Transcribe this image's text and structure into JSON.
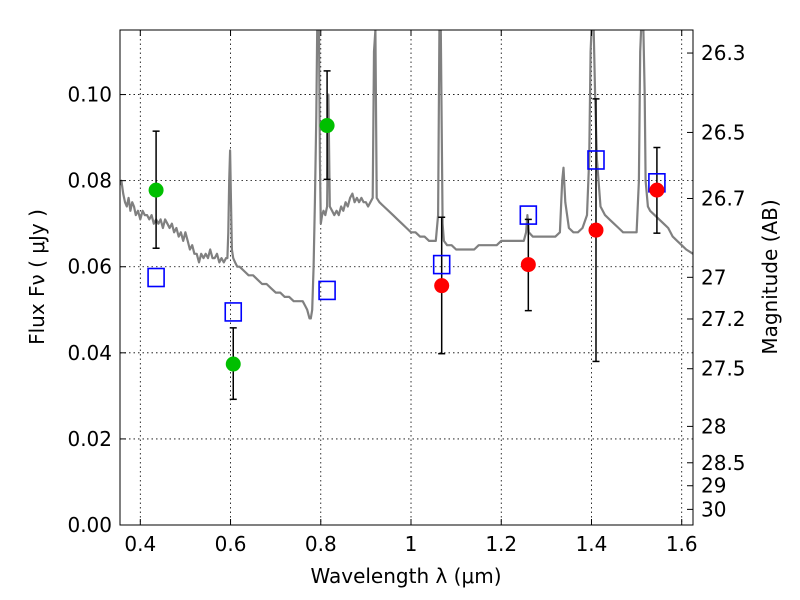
{
  "chart_data": {
    "type": "scatter",
    "xlabel": "Wavelength  λ (μm)",
    "ylabel": "Flux  Fν  ( μJy )",
    "ylabel_right": "Magnitude (AB)",
    "xlim": [
      0.355,
      1.625
    ],
    "ylim": [
      0.0,
      0.115
    ],
    "grid": true,
    "x_ticks": [
      {
        "value": 0.4,
        "label": "0.4"
      },
      {
        "value": 0.6,
        "label": "0.6"
      },
      {
        "value": 0.8,
        "label": "0.8"
      },
      {
        "value": 1.0,
        "label": "1"
      },
      {
        "value": 1.2,
        "label": "1.2"
      },
      {
        "value": 1.4,
        "label": "1.4"
      },
      {
        "value": 1.6,
        "label": "1.6"
      }
    ],
    "y_ticks": [
      {
        "value": 0.0,
        "label": "0.00"
      },
      {
        "value": 0.02,
        "label": "0.02"
      },
      {
        "value": 0.04,
        "label": "0.04"
      },
      {
        "value": 0.06,
        "label": "0.06"
      },
      {
        "value": 0.08,
        "label": "0.08"
      },
      {
        "value": 0.1,
        "label": "0.10"
      }
    ],
    "magnitude_ticks": [
      {
        "value": 26.3,
        "label": "26.3"
      },
      {
        "value": 26.5,
        "label": "26.5"
      },
      {
        "value": 26.7,
        "label": "26.7"
      },
      {
        "value": 27.0,
        "label": "27"
      },
      {
        "value": 27.2,
        "label": "27.2"
      },
      {
        "value": 27.5,
        "label": "27.5"
      },
      {
        "value": 28.0,
        "label": "28"
      },
      {
        "value": 28.5,
        "label": "28.5"
      },
      {
        "value": 29.0,
        "label": "29"
      },
      {
        "value": 30.0,
        "label": "30"
      }
    ],
    "series": [
      {
        "kind": "template_spectrum",
        "color": "#808080",
        "points": [
          [
            0.355,
            0.079
          ],
          [
            0.358,
            0.08
          ],
          [
            0.362,
            0.077
          ],
          [
            0.366,
            0.075
          ],
          [
            0.37,
            0.074
          ],
          [
            0.374,
            0.076
          ],
          [
            0.378,
            0.073
          ],
          [
            0.382,
            0.075
          ],
          [
            0.386,
            0.074
          ],
          [
            0.39,
            0.072
          ],
          [
            0.395,
            0.073
          ],
          [
            0.4,
            0.071
          ],
          [
            0.405,
            0.073
          ],
          [
            0.41,
            0.072
          ],
          [
            0.415,
            0.072
          ],
          [
            0.42,
            0.071
          ],
          [
            0.425,
            0.072
          ],
          [
            0.43,
            0.07
          ],
          [
            0.435,
            0.071
          ],
          [
            0.44,
            0.07
          ],
          [
            0.445,
            0.071
          ],
          [
            0.45,
            0.069
          ],
          [
            0.455,
            0.071
          ],
          [
            0.46,
            0.07
          ],
          [
            0.465,
            0.069
          ],
          [
            0.47,
            0.07
          ],
          [
            0.475,
            0.068
          ],
          [
            0.48,
            0.069
          ],
          [
            0.485,
            0.067
          ],
          [
            0.49,
            0.068
          ],
          [
            0.495,
            0.066
          ],
          [
            0.5,
            0.068
          ],
          [
            0.505,
            0.066
          ],
          [
            0.51,
            0.064
          ],
          [
            0.515,
            0.065
          ],
          [
            0.52,
            0.063
          ],
          [
            0.525,
            0.063
          ],
          [
            0.53,
            0.061
          ],
          [
            0.535,
            0.063
          ],
          [
            0.54,
            0.062
          ],
          [
            0.545,
            0.063
          ],
          [
            0.55,
            0.062
          ],
          [
            0.555,
            0.064
          ],
          [
            0.56,
            0.062
          ],
          [
            0.565,
            0.062
          ],
          [
            0.57,
            0.063
          ],
          [
            0.575,
            0.061
          ],
          [
            0.58,
            0.062
          ],
          [
            0.585,
            0.061
          ],
          [
            0.59,
            0.062
          ],
          [
            0.593,
            0.062
          ],
          [
            0.595,
            0.068
          ],
          [
            0.597,
            0.08
          ],
          [
            0.599,
            0.087
          ],
          [
            0.601,
            0.075
          ],
          [
            0.603,
            0.064
          ],
          [
            0.606,
            0.062
          ],
          [
            0.61,
            0.061
          ],
          [
            0.615,
            0.06
          ],
          [
            0.62,
            0.06
          ],
          [
            0.63,
            0.059
          ],
          [
            0.64,
            0.058
          ],
          [
            0.65,
            0.058
          ],
          [
            0.66,
            0.057
          ],
          [
            0.67,
            0.056
          ],
          [
            0.68,
            0.056
          ],
          [
            0.69,
            0.055
          ],
          [
            0.7,
            0.054
          ],
          [
            0.71,
            0.054
          ],
          [
            0.72,
            0.053
          ],
          [
            0.73,
            0.053
          ],
          [
            0.74,
            0.052
          ],
          [
            0.75,
            0.052
          ],
          [
            0.76,
            0.052
          ],
          [
            0.765,
            0.051
          ],
          [
            0.77,
            0.05
          ],
          [
            0.775,
            0.048
          ],
          [
            0.778,
            0.048
          ],
          [
            0.781,
            0.05
          ],
          [
            0.784,
            0.06
          ],
          [
            0.787,
            0.075
          ],
          [
            0.79,
            0.095
          ],
          [
            0.792,
            0.115
          ],
          [
            0.796,
            0.115
          ],
          [
            0.798,
            0.085
          ],
          [
            0.8,
            0.07
          ],
          [
            0.803,
            0.072
          ],
          [
            0.806,
            0.073
          ],
          [
            0.81,
            0.072
          ],
          [
            0.814,
            0.074
          ],
          [
            0.817,
            0.1
          ],
          [
            0.82,
            0.074
          ],
          [
            0.825,
            0.073
          ],
          [
            0.83,
            0.072
          ],
          [
            0.835,
            0.073
          ],
          [
            0.84,
            0.072
          ],
          [
            0.845,
            0.074
          ],
          [
            0.85,
            0.073
          ],
          [
            0.855,
            0.075
          ],
          [
            0.86,
            0.074
          ],
          [
            0.865,
            0.076
          ],
          [
            0.87,
            0.077
          ],
          [
            0.875,
            0.075
          ],
          [
            0.88,
            0.076
          ],
          [
            0.885,
            0.075
          ],
          [
            0.89,
            0.076
          ],
          [
            0.895,
            0.075
          ],
          [
            0.9,
            0.075
          ],
          [
            0.905,
            0.074
          ],
          [
            0.91,
            0.075
          ],
          [
            0.915,
            0.076
          ],
          [
            0.918,
            0.11
          ],
          [
            0.921,
            0.115
          ],
          [
            0.924,
            0.076
          ],
          [
            0.93,
            0.075
          ],
          [
            0.94,
            0.074
          ],
          [
            0.95,
            0.073
          ],
          [
            0.96,
            0.072
          ],
          [
            0.97,
            0.071
          ],
          [
            0.98,
            0.07
          ],
          [
            0.99,
            0.069
          ],
          [
            1.0,
            0.068
          ],
          [
            1.01,
            0.068
          ],
          [
            1.02,
            0.067
          ],
          [
            1.03,
            0.067
          ],
          [
            1.04,
            0.066
          ],
          [
            1.05,
            0.066
          ],
          [
            1.055,
            0.066
          ],
          [
            1.06,
            0.072
          ],
          [
            1.063,
            0.115
          ],
          [
            1.066,
            0.115
          ],
          [
            1.07,
            0.07
          ],
          [
            1.073,
            0.066
          ],
          [
            1.08,
            0.065
          ],
          [
            1.09,
            0.065
          ],
          [
            1.1,
            0.064
          ],
          [
            1.11,
            0.064
          ],
          [
            1.12,
            0.064
          ],
          [
            1.13,
            0.064
          ],
          [
            1.14,
            0.064
          ],
          [
            1.15,
            0.065
          ],
          [
            1.16,
            0.065
          ],
          [
            1.17,
            0.065
          ],
          [
            1.18,
            0.065
          ],
          [
            1.19,
            0.065
          ],
          [
            1.2,
            0.066
          ],
          [
            1.21,
            0.066
          ],
          [
            1.22,
            0.066
          ],
          [
            1.23,
            0.066
          ],
          [
            1.24,
            0.066
          ],
          [
            1.25,
            0.066
          ],
          [
            1.255,
            0.068
          ],
          [
            1.258,
            0.072
          ],
          [
            1.261,
            0.068
          ],
          [
            1.27,
            0.067
          ],
          [
            1.28,
            0.067
          ],
          [
            1.29,
            0.067
          ],
          [
            1.3,
            0.067
          ],
          [
            1.31,
            0.067
          ],
          [
            1.32,
            0.067
          ],
          [
            1.33,
            0.068
          ],
          [
            1.335,
            0.08
          ],
          [
            1.338,
            0.083
          ],
          [
            1.342,
            0.075
          ],
          [
            1.35,
            0.069
          ],
          [
            1.36,
            0.068
          ],
          [
            1.37,
            0.068
          ],
          [
            1.38,
            0.069
          ],
          [
            1.39,
            0.072
          ],
          [
            1.395,
            0.085
          ],
          [
            1.398,
            0.11
          ],
          [
            1.4,
            0.115
          ],
          [
            1.405,
            0.115
          ],
          [
            1.408,
            0.1
          ],
          [
            1.412,
            0.085
          ],
          [
            1.42,
            0.074
          ],
          [
            1.43,
            0.072
          ],
          [
            1.44,
            0.071
          ],
          [
            1.45,
            0.07
          ],
          [
            1.46,
            0.069
          ],
          [
            1.47,
            0.068
          ],
          [
            1.48,
            0.068
          ],
          [
            1.49,
            0.068
          ],
          [
            1.5,
            0.068
          ],
          [
            1.505,
            0.08
          ],
          [
            1.508,
            0.11
          ],
          [
            1.51,
            0.115
          ],
          [
            1.515,
            0.115
          ],
          [
            1.518,
            0.1
          ],
          [
            1.52,
            0.08
          ],
          [
            1.525,
            0.074
          ],
          [
            1.53,
            0.073
          ],
          [
            1.54,
            0.072
          ],
          [
            1.55,
            0.071
          ],
          [
            1.56,
            0.07
          ],
          [
            1.57,
            0.069
          ],
          [
            1.58,
            0.067
          ],
          [
            1.59,
            0.066
          ],
          [
            1.6,
            0.065
          ],
          [
            1.61,
            0.064
          ],
          [
            1.625,
            0.063
          ]
        ]
      },
      {
        "kind": "observed_photometry_optical",
        "marker": "circle",
        "color": "#00bf00",
        "points": [
          {
            "x": 0.435,
            "y": 0.0778,
            "err_low": 0.0643,
            "err_high": 0.0915
          },
          {
            "x": 0.606,
            "y": 0.0374,
            "err_low": 0.0292,
            "err_high": 0.0458
          },
          {
            "x": 0.814,
            "y": 0.0928,
            "err_low": 0.0803,
            "err_high": 0.1055
          }
        ]
      },
      {
        "kind": "observed_photometry_nir",
        "marker": "circle",
        "color": "#ff0000",
        "points": [
          {
            "x": 1.068,
            "y": 0.0556,
            "err_low": 0.0398,
            "err_high": 0.0715
          },
          {
            "x": 1.26,
            "y": 0.0605,
            "err_low": 0.0498,
            "err_high": 0.071
          },
          {
            "x": 1.41,
            "y": 0.0685,
            "err_low": 0.038,
            "err_high": 0.099
          },
          {
            "x": 1.545,
            "y": 0.0778,
            "err_low": 0.0678,
            "err_high": 0.0877
          }
        ]
      },
      {
        "kind": "model_photometry",
        "marker": "open-square",
        "color": "#0000ff",
        "points": [
          {
            "x": 0.435,
            "y": 0.0575
          },
          {
            "x": 0.606,
            "y": 0.0495
          },
          {
            "x": 0.814,
            "y": 0.0545
          },
          {
            "x": 1.068,
            "y": 0.0605
          },
          {
            "x": 1.26,
            "y": 0.072
          },
          {
            "x": 1.41,
            "y": 0.0848
          },
          {
            "x": 1.545,
            "y": 0.0795
          }
        ]
      }
    ]
  }
}
